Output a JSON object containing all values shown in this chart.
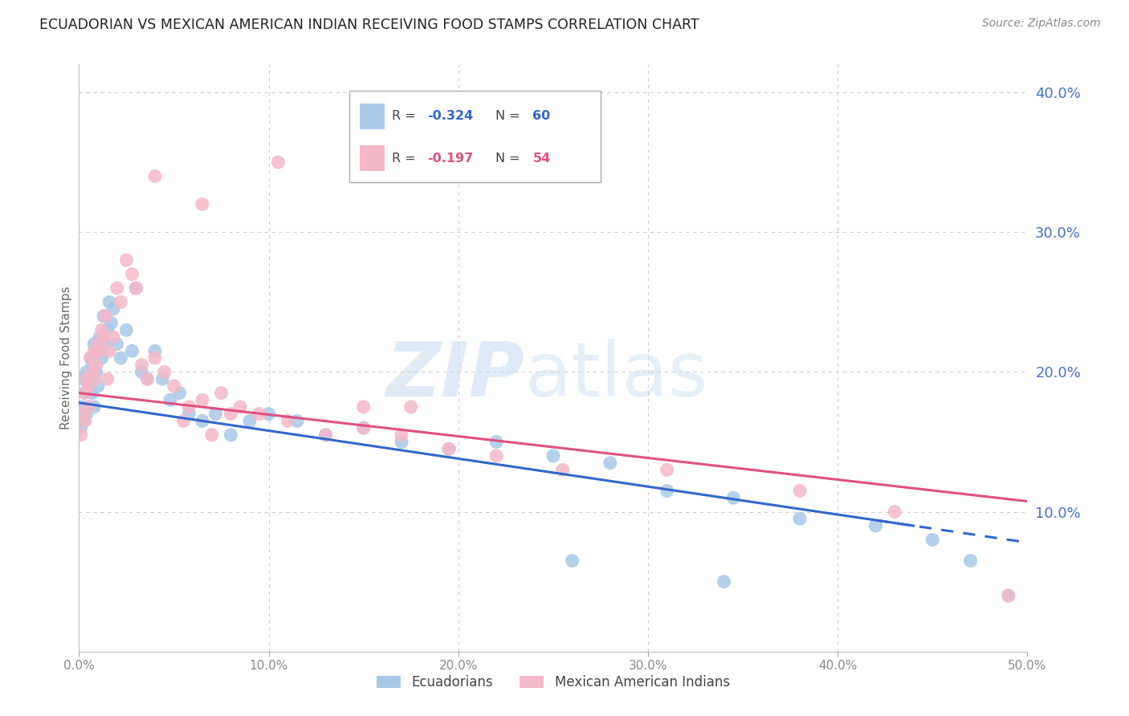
{
  "title": "ECUADORIAN VS MEXICAN AMERICAN INDIAN RECEIVING FOOD STAMPS CORRELATION CHART",
  "source": "Source: ZipAtlas.com",
  "ylabel": "Receiving Food Stamps",
  "xlim": [
    0.0,
    0.5
  ],
  "ylim": [
    0.0,
    0.42
  ],
  "xtick_vals": [
    0.0,
    0.1,
    0.2,
    0.3,
    0.4,
    0.5
  ],
  "xtick_labels": [
    "0.0%",
    "10.0%",
    "20.0%",
    "30.0%",
    "40.0%",
    "50.0%"
  ],
  "ytick_vals": [
    0.1,
    0.2,
    0.3,
    0.4
  ],
  "ytick_labels": [
    "10.0%",
    "20.0%",
    "30.0%",
    "40.0%"
  ],
  "grid_color": "#cccccc",
  "background_color": "#ffffff",
  "blue_color": "#a8c8e8",
  "pink_color": "#f4b8c8",
  "blue_line_color": "#3366cc",
  "pink_line_color": "#e05080",
  "right_tick_color": "#4472c4",
  "bottom_tick_color": "#888888",
  "blue_intercept": 0.178,
  "blue_slope": -0.2,
  "pink_intercept": 0.185,
  "pink_slope": -0.155,
  "blue_x": [
    0.001,
    0.002,
    0.002,
    0.003,
    0.003,
    0.004,
    0.004,
    0.005,
    0.005,
    0.006,
    0.006,
    0.007,
    0.007,
    0.008,
    0.008,
    0.009,
    0.01,
    0.01,
    0.011,
    0.012,
    0.013,
    0.014,
    0.015,
    0.016,
    0.017,
    0.018,
    0.02,
    0.022,
    0.025,
    0.028,
    0.03,
    0.033,
    0.036,
    0.04,
    0.044,
    0.048,
    0.053,
    0.058,
    0.065,
    0.072,
    0.08,
    0.09,
    0.1,
    0.115,
    0.13,
    0.15,
    0.17,
    0.195,
    0.22,
    0.25,
    0.28,
    0.31,
    0.345,
    0.38,
    0.42,
    0.45,
    0.47,
    0.49,
    0.34,
    0.26
  ],
  "blue_y": [
    0.16,
    0.175,
    0.195,
    0.185,
    0.165,
    0.2,
    0.17,
    0.19,
    0.175,
    0.21,
    0.195,
    0.205,
    0.185,
    0.22,
    0.175,
    0.2,
    0.215,
    0.19,
    0.225,
    0.21,
    0.24,
    0.22,
    0.23,
    0.25,
    0.235,
    0.245,
    0.22,
    0.21,
    0.23,
    0.215,
    0.26,
    0.2,
    0.195,
    0.215,
    0.195,
    0.18,
    0.185,
    0.17,
    0.165,
    0.17,
    0.155,
    0.165,
    0.17,
    0.165,
    0.155,
    0.16,
    0.15,
    0.145,
    0.15,
    0.14,
    0.135,
    0.115,
    0.11,
    0.095,
    0.09,
    0.08,
    0.065,
    0.04,
    0.05,
    0.065
  ],
  "pink_x": [
    0.001,
    0.002,
    0.003,
    0.003,
    0.004,
    0.005,
    0.005,
    0.006,
    0.007,
    0.008,
    0.008,
    0.009,
    0.01,
    0.011,
    0.012,
    0.013,
    0.014,
    0.015,
    0.016,
    0.018,
    0.02,
    0.022,
    0.025,
    0.028,
    0.03,
    0.033,
    0.036,
    0.04,
    0.045,
    0.05,
    0.058,
    0.065,
    0.075,
    0.085,
    0.095,
    0.11,
    0.13,
    0.15,
    0.17,
    0.195,
    0.22,
    0.255,
    0.15,
    0.175,
    0.105,
    0.065,
    0.04,
    0.08,
    0.055,
    0.07,
    0.49,
    0.43,
    0.38,
    0.31
  ],
  "pink_y": [
    0.155,
    0.17,
    0.185,
    0.165,
    0.195,
    0.175,
    0.19,
    0.21,
    0.2,
    0.215,
    0.195,
    0.205,
    0.22,
    0.215,
    0.23,
    0.225,
    0.24,
    0.195,
    0.215,
    0.225,
    0.26,
    0.25,
    0.28,
    0.27,
    0.26,
    0.205,
    0.195,
    0.21,
    0.2,
    0.19,
    0.175,
    0.18,
    0.185,
    0.175,
    0.17,
    0.165,
    0.155,
    0.16,
    0.155,
    0.145,
    0.14,
    0.13,
    0.175,
    0.175,
    0.35,
    0.32,
    0.34,
    0.17,
    0.165,
    0.155,
    0.04,
    0.1,
    0.115,
    0.13
  ]
}
